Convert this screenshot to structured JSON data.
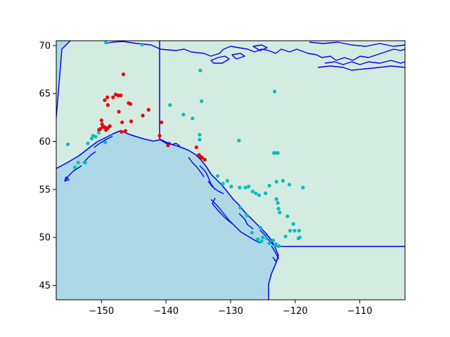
{
  "colors": {
    "ocean": "#add8e6",
    "land": "#d4ebe1",
    "coastline": "#0000ee",
    "series_red": "#ee0000",
    "series_cyan": "#00bfbf"
  },
  "chart_data": {
    "type": "scatter",
    "title": "",
    "xlabel": "",
    "ylabel": "",
    "xlim": [
      -157,
      -103
    ],
    "ylim": [
      43.5,
      70.5
    ],
    "grid": false,
    "legend": "none",
    "x_ticks": [
      {
        "value": -150,
        "label": "−150"
      },
      {
        "value": -140,
        "label": "−140"
      },
      {
        "value": -130,
        "label": "−130"
      },
      {
        "value": -120,
        "label": "−120"
      },
      {
        "value": -110,
        "label": "−110"
      }
    ],
    "y_ticks": [
      {
        "value": 45,
        "label": "45"
      },
      {
        "value": 50,
        "label": "50"
      },
      {
        "value": 55,
        "label": "55"
      },
      {
        "value": 60,
        "label": "60"
      },
      {
        "value": 65,
        "label": "65"
      },
      {
        "value": 70,
        "label": "70"
      }
    ],
    "series": [
      {
        "color": "#ee0000",
        "points": [
          [
            -146.6,
            67.0
          ],
          [
            -147.8,
            64.9
          ],
          [
            -147.4,
            64.8
          ],
          [
            -147.0,
            64.8
          ],
          [
            -148.2,
            64.6
          ],
          [
            -149.1,
            64.6
          ],
          [
            -149.5,
            64.3
          ],
          [
            -145.8,
            64.0
          ],
          [
            -145.5,
            63.9
          ],
          [
            -142.7,
            63.3
          ],
          [
            -147.3,
            63.1
          ],
          [
            -149.0,
            63.8
          ],
          [
            -143.6,
            62.7
          ],
          [
            -150.0,
            62.2
          ],
          [
            -145.4,
            62.1
          ],
          [
            -146.8,
            62.0
          ],
          [
            -149.9,
            61.8
          ],
          [
            -149.5,
            61.5
          ],
          [
            -150.2,
            61.3
          ],
          [
            -149.3,
            61.2
          ],
          [
            -149.8,
            61.5
          ],
          [
            -149.0,
            61.4
          ],
          [
            -148.7,
            61.6
          ],
          [
            -146.3,
            61.1
          ],
          [
            -146.9,
            61.0
          ],
          [
            -150.4,
            61.2
          ],
          [
            -140.7,
            62.0
          ],
          [
            -141.0,
            60.6
          ],
          [
            -139.7,
            59.6
          ],
          [
            -135.3,
            59.4
          ],
          [
            -134.9,
            58.6
          ],
          [
            -134.4,
            58.3
          ],
          [
            -134.0,
            58.1
          ],
          [
            -134.6,
            58.4
          ]
        ]
      },
      {
        "color": "#00bfbf",
        "points": [
          [
            -143.7,
            70.1
          ],
          [
            -149.3,
            70.3
          ],
          [
            -134.7,
            67.4
          ],
          [
            -123.2,
            65.2
          ],
          [
            -134.5,
            64.2
          ],
          [
            -139.4,
            63.8
          ],
          [
            -137.3,
            62.8
          ],
          [
            -135.9,
            62.4
          ],
          [
            -134.8,
            60.7
          ],
          [
            -134.8,
            60.2
          ],
          [
            -128.7,
            60.1
          ],
          [
            -155.2,
            59.7
          ],
          [
            -151.5,
            60.3
          ],
          [
            -152.1,
            59.8
          ],
          [
            -151.3,
            60.6
          ],
          [
            -150.9,
            60.5
          ],
          [
            -149.4,
            59.9
          ],
          [
            -150.4,
            60.9
          ],
          [
            -153.6,
            57.8
          ],
          [
            -152.5,
            57.8
          ],
          [
            -154.1,
            57.3
          ],
          [
            -123.1,
            58.8
          ],
          [
            -122.7,
            58.8
          ],
          [
            -123.3,
            58.8
          ],
          [
            -132.0,
            56.4
          ],
          [
            -130.5,
            55.9
          ],
          [
            -131.2,
            55.6
          ],
          [
            -129.9,
            55.3
          ],
          [
            -128.6,
            55.2
          ],
          [
            -127.7,
            55.2
          ],
          [
            -127.2,
            55.3
          ],
          [
            -126.6,
            54.8
          ],
          [
            -126.1,
            54.6
          ],
          [
            -125.6,
            54.4
          ],
          [
            -124.6,
            54.6
          ],
          [
            -124.0,
            55.4
          ],
          [
            -122.9,
            55.8
          ],
          [
            -121.9,
            55.9
          ],
          [
            -120.9,
            55.5
          ],
          [
            -118.8,
            55.2
          ],
          [
            -122.9,
            54.0
          ],
          [
            -122.7,
            53.6
          ],
          [
            -122.6,
            53.0
          ],
          [
            -122.4,
            52.6
          ],
          [
            -121.2,
            52.2
          ],
          [
            -120.3,
            51.4
          ],
          [
            -119.4,
            50.7
          ],
          [
            -120.8,
            50.7
          ],
          [
            -120.1,
            50.7
          ],
          [
            -119.3,
            50.0
          ],
          [
            -119.5,
            49.9
          ],
          [
            -121.5,
            50.1
          ],
          [
            -123.0,
            49.3
          ],
          [
            -123.4,
            49.7
          ],
          [
            -124.0,
            49.4
          ],
          [
            -125.2,
            49.6
          ],
          [
            -125.8,
            49.8
          ],
          [
            -126.7,
            50.5
          ],
          [
            -125.0,
            50.0
          ],
          [
            -124.4,
            49.9
          ],
          [
            -123.1,
            49.2
          ],
          [
            -122.5,
            49.1
          ],
          [
            -127.5,
            52.3
          ],
          [
            -128.5,
            53.1
          ],
          [
            -125.4,
            51.0
          ]
        ]
      }
    ]
  }
}
